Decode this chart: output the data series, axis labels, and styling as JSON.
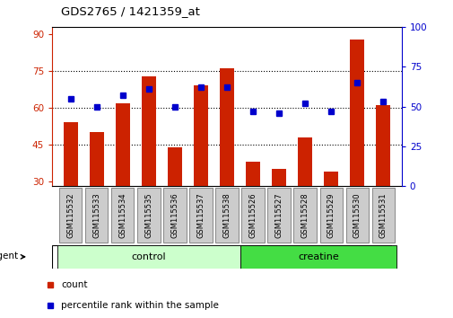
{
  "title": "GDS2765 / 1421359_at",
  "samples": [
    "GSM115532",
    "GSM115533",
    "GSM115534",
    "GSM115535",
    "GSM115536",
    "GSM115537",
    "GSM115538",
    "GSM115526",
    "GSM115527",
    "GSM115528",
    "GSM115529",
    "GSM115530",
    "GSM115531"
  ],
  "counts": [
    54,
    50,
    62,
    73,
    44,
    69,
    76,
    38,
    35,
    48,
    34,
    88,
    61
  ],
  "percentiles": [
    55,
    50,
    57,
    61,
    50,
    62,
    62,
    47,
    46,
    52,
    47,
    65,
    53
  ],
  "bar_color": "#cc2200",
  "dot_color": "#0000cc",
  "ylim_left": [
    28,
    93
  ],
  "ylim_right": [
    0,
    100
  ],
  "yticks_left": [
    30,
    45,
    60,
    75,
    90
  ],
  "yticks_right": [
    0,
    25,
    50,
    75,
    100
  ],
  "grid_values": [
    45,
    60,
    75
  ],
  "groups": [
    {
      "label": "control",
      "indices": [
        0,
        1,
        2,
        3,
        4,
        5,
        6
      ],
      "color": "#ccffcc"
    },
    {
      "label": "creatine",
      "indices": [
        7,
        8,
        9,
        10,
        11,
        12
      ],
      "color": "#44dd44"
    }
  ],
  "agent_label": "agent",
  "legend_count": "count",
  "legend_pct": "percentile rank within the sample",
  "background_color": "#ffffff",
  "bar_width": 0.55,
  "right_axis_label_color": "#0000cc",
  "left_axis_label_color": "#cc2200",
  "sample_box_color": "#cccccc",
  "sample_box_edge": "#888888"
}
